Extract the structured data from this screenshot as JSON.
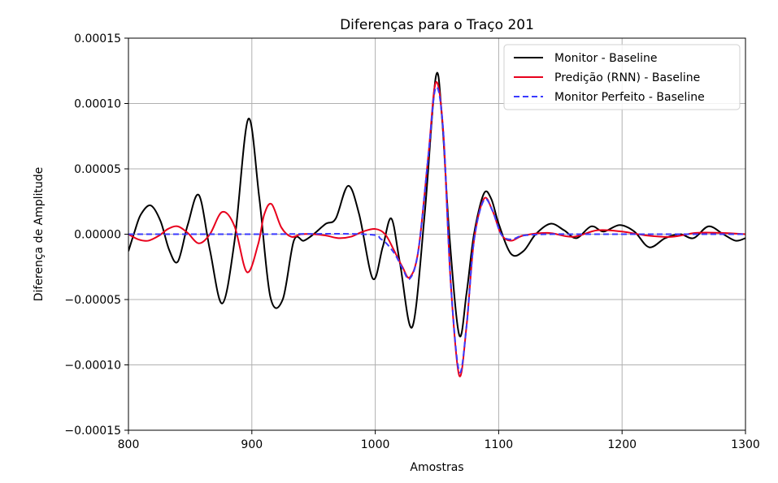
{
  "chart_data": {
    "type": "line",
    "title": "Diferenças para o Traço 201",
    "xlabel": "Amostras",
    "ylabel": "Diferença de Amplitude",
    "xlim": [
      800,
      1300
    ],
    "ylim": [
      -0.00015,
      0.00015
    ],
    "xticks": [
      800,
      900,
      1000,
      1100,
      1200,
      1300
    ],
    "xtick_labels": [
      "800",
      "900",
      "1000",
      "1100",
      "1200",
      "1300"
    ],
    "yticks": [
      -0.00015,
      -0.0001,
      -5e-05,
      0,
      5e-05,
      0.0001,
      0.00015
    ],
    "ytick_labels": [
      "−0.00015",
      "−0.00010",
      "−0.00005",
      "0.00000",
      "0.00005",
      "0.00010",
      "0.00015"
    ],
    "grid": true,
    "legend_position": "top-right",
    "series": [
      {
        "name": "Monitor - Baseline",
        "color": "#000000",
        "dash": "solid",
        "x": [
          800,
          805,
          810,
          818,
          826,
          833,
          840,
          848,
          857,
          866,
          876,
          886,
          897,
          906,
          915,
          925,
          934,
          942,
          950,
          960,
          968,
          978,
          987,
          998,
          1006,
          1013,
          1020,
          1030,
          1040,
          1049,
          1054,
          1060,
          1068,
          1074,
          1080,
          1088,
          1094,
          1100,
          1110,
          1120,
          1130,
          1142,
          1153,
          1163,
          1175,
          1185,
          1198,
          1210,
          1222,
          1235,
          1247,
          1258,
          1270,
          1282,
          1292,
          1300
        ],
        "y": [
          -1.3e-05,
          2e-06,
          1.5e-05,
          2.2e-05,
          1e-05,
          -1.2e-05,
          -2.1e-05,
          7e-06,
          3e-05,
          -1.2e-05,
          -5.3e-05,
          -5e-06,
          8.8e-05,
          2.8e-05,
          -4.8e-05,
          -5e-05,
          -5e-06,
          -5e-06,
          0.0,
          8e-06,
          1.2e-05,
          3.7e-05,
          1.5e-05,
          -3.4e-05,
          -1e-05,
          1.2e-05,
          -2.2e-05,
          -7.1e-05,
          1.5e-05,
          0.00012,
          9e-05,
          0.0,
          -7.7e-05,
          -4.5e-05,
          0.0,
          3.1e-05,
          2.7e-05,
          8e-06,
          -1.5e-05,
          -1.3e-05,
          0.0,
          8e-06,
          3e-06,
          -3e-06,
          6e-06,
          2e-06,
          7e-06,
          2e-06,
          -1e-05,
          -3e-06,
          0.0,
          -3e-06,
          6e-06,
          0.0,
          -5e-06,
          -3e-06
        ]
      },
      {
        "name": "Predição (RNN) - Baseline",
        "color": "#e8001c",
        "dash": "solid",
        "x": [
          800,
          808,
          816,
          825,
          832,
          840,
          848,
          857,
          866,
          876,
          886,
          896,
          905,
          910,
          916,
          924,
          932,
          940,
          950,
          960,
          970,
          980,
          990,
          1000,
          1008,
          1015,
          1022,
          1028,
          1035,
          1043,
          1049,
          1055,
          1061,
          1068,
          1074,
          1080,
          1088,
          1095,
          1102,
          1110,
          1120,
          1140,
          1160,
          1180,
          1200,
          1220,
          1240,
          1260,
          1280,
          1300
        ],
        "y": [
          0.0,
          -4e-06,
          -5e-06,
          -1e-06,
          4e-06,
          6e-06,
          1e-06,
          -7e-06,
          0.0,
          1.7e-05,
          6e-06,
          -2.9e-05,
          -8e-06,
          1.5e-05,
          2.3e-05,
          5e-06,
          -2e-06,
          0.0,
          0.0,
          -1e-06,
          -3e-06,
          -2e-06,
          2e-06,
          4e-06,
          0.0,
          -1.2e-05,
          -2.5e-05,
          -3.3e-05,
          -1.2e-05,
          6e-05,
          0.000116,
          8e-05,
          -3.5e-05,
          -0.000108,
          -7e-05,
          -5e-06,
          2.7e-05,
          1.8e-05,
          0.0,
          -5e-06,
          -1e-06,
          1e-06,
          -2e-06,
          3e-06,
          2e-06,
          -1e-06,
          -2e-06,
          1e-06,
          1e-06,
          0.0
        ]
      },
      {
        "name": "Monitor Perfeito - Baseline",
        "color": "#3a3aff",
        "dash": "dashed",
        "x": [
          800,
          900,
          990,
          1005,
          1015,
          1022,
          1028,
          1035,
          1043,
          1049,
          1055,
          1061,
          1068,
          1074,
          1080,
          1088,
          1095,
          1102,
          1110,
          1120,
          1140,
          1160,
          1180,
          1200,
          1220,
          1240,
          1260,
          1280,
          1300
        ],
        "y": [
          0.0,
          0.0,
          0.0,
          -4e-06,
          -1.4e-05,
          -2.6e-05,
          -3.4e-05,
          -1.2e-05,
          6e-05,
          0.000112,
          8e-05,
          -3.5e-05,
          -0.000105,
          -7e-05,
          -5e-06,
          2.6e-05,
          1.8e-05,
          0.0,
          -4e-06,
          -1e-06,
          0.0,
          0.0,
          0.0,
          0.0,
          0.0,
          0.0,
          0.0,
          0.0,
          0.0
        ]
      }
    ]
  }
}
